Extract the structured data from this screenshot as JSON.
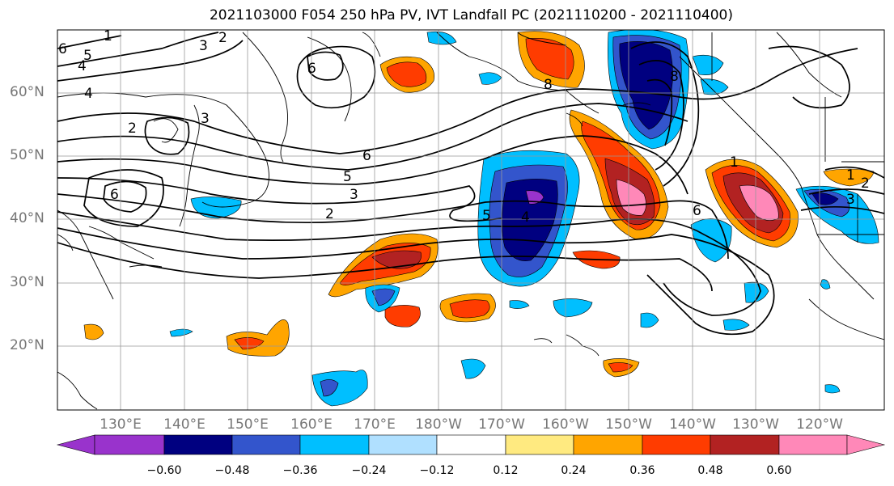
{
  "title": "2021103000 F054 250 hPa PV, IVT Landfall PC (2021110200 - 2021110400)",
  "lat_labels": [
    "60°N",
    "50°N",
    "40°N",
    "30°N",
    "20°N"
  ],
  "lon_labels": [
    "130°E",
    "140°E",
    "150°E",
    "160°E",
    "170°E",
    "180°W",
    "170°W",
    "160°W",
    "150°W",
    "140°W",
    "130°W",
    "120°W"
  ],
  "colorbar": {
    "ticks": [
      "−0.60",
      "−0.48",
      "−0.36",
      "−0.24",
      "−0.12",
      "0.12",
      "0.24",
      "0.36",
      "0.48",
      "0.60"
    ],
    "levels": [
      -0.6,
      -0.48,
      -0.36,
      -0.24,
      -0.12,
      0.12,
      0.24,
      0.36,
      0.48,
      0.6
    ],
    "colors": [
      "#9933cc",
      "#000080",
      "#3355cc",
      "#00bfff",
      "#b0e0ff",
      "#ffffff",
      "#ffea80",
      "#ffa500",
      "#ff3c00",
      "#b22222",
      "#ff88b8"
    ]
  },
  "contour_labels": [
    "1",
    "2",
    "2",
    "3",
    "3",
    "4",
    "4",
    "5",
    "5",
    "6",
    "6",
    "6",
    "6",
    "8",
    "8",
    "6",
    "2",
    "3",
    "4",
    "5",
    "1",
    "2",
    "3",
    "1"
  ]
}
